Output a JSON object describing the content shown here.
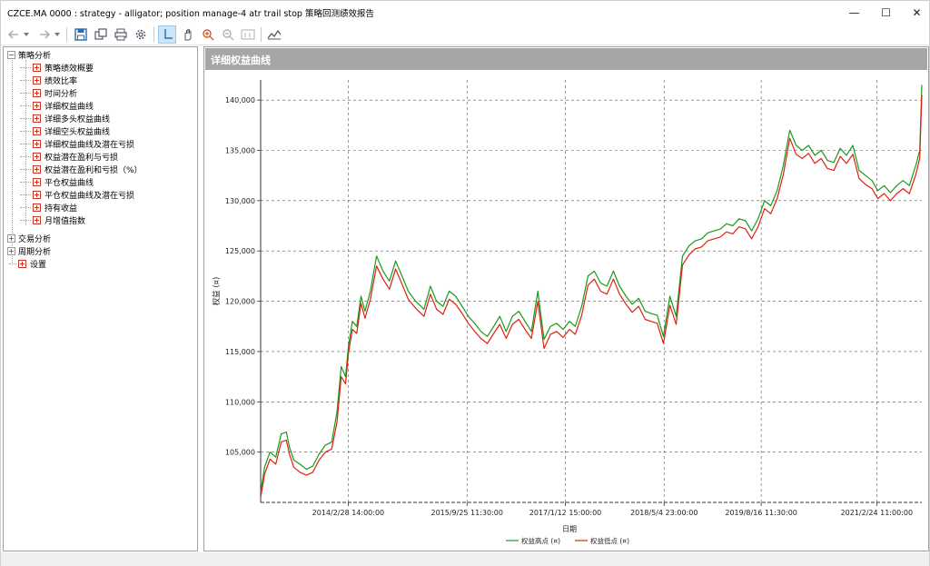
{
  "window": {
    "title": "CZCE.MA 0000 : strategy - alligator; position manage-4 atr trail stop 策略回测绩效报告",
    "minimize": "—",
    "maximize": "☐",
    "close": "✕"
  },
  "toolbar": {
    "buttons": [
      "back-icon",
      "dropdown-arrow-icon",
      "forward-icon",
      "dropdown-arrow-icon",
      "save-icon",
      "copy-icon",
      "print-icon",
      "settings-icon",
      "crosshair-icon",
      "hand-pan-icon",
      "zoom-in-icon",
      "zoom-out-icon",
      "zoom-actual-icon",
      "chart-type-icon"
    ]
  },
  "tree": {
    "root_strategy": "策略分析",
    "items": [
      "策略绩效概要",
      "绩效比率",
      "时间分析",
      "详细权益曲线",
      "详细多头权益曲线",
      "详细空头权益曲线",
      "详细权益曲线及潜在亏损",
      "权益潜在盈利与亏损",
      "权益潜在盈利和亏损（%）",
      "平仓权益曲线",
      "平仓权益曲线及潜在亏损",
      "持有收益",
      "月增值指数"
    ],
    "selected_index": 3,
    "root_trade": "交易分析",
    "root_period": "周期分析",
    "settings": "设置"
  },
  "chart_header": "详细权益曲线",
  "chart_data": {
    "type": "line",
    "title": "",
    "xlabel": "日期",
    "ylabel": "权益 (¤)",
    "ylim": [
      100000,
      142000
    ],
    "y_ticks": [
      "105,000",
      "110,000",
      "115,000",
      "120,000",
      "125,000",
      "130,000",
      "135,000",
      "140,000"
    ],
    "y_tick_values": [
      105000,
      110000,
      115000,
      120000,
      125000,
      130000,
      135000,
      140000
    ],
    "x_ticks": [
      "2014/2/28 14:00:00",
      "2015/9/25 11:30:00",
      "2017/1/12 15:00:00",
      "2018/5/4 23:00:00",
      "2019/8/16 11:30:00",
      "2021/2/24 11:00:00"
    ],
    "x_tick_dates": [
      "2014-02-28",
      "2015-09-25",
      "2017-01-12",
      "2018-05-04",
      "2019-08-16",
      "2021-02-24"
    ],
    "x_range": [
      "2013-01-01",
      "2021-09-30"
    ],
    "grid": true,
    "legend_position": "bottom",
    "series": [
      {
        "name": "权益高点 (¤)",
        "color": "#1a9a1a",
        "x": [
          "2013-01-01",
          "2013-01-20",
          "2013-02-15",
          "2013-03-15",
          "2013-04-10",
          "2013-05-05",
          "2013-05-20",
          "2013-06-10",
          "2013-07-10",
          "2013-08-10",
          "2013-09-10",
          "2013-10-10",
          "2013-11-10",
          "2013-12-10",
          "2014-01-05",
          "2014-01-25",
          "2014-02-15",
          "2014-03-01",
          "2014-03-20",
          "2014-04-10",
          "2014-05-01",
          "2014-05-20",
          "2014-06-15",
          "2014-07-15",
          "2014-08-15",
          "2014-09-15",
          "2014-10-15",
          "2014-11-15",
          "2014-12-15",
          "2015-01-20",
          "2015-03-01",
          "2015-04-01",
          "2015-05-01",
          "2015-06-01",
          "2015-07-01",
          "2015-08-01",
          "2015-09-01",
          "2015-10-01",
          "2015-11-01",
          "2015-12-01",
          "2016-01-01",
          "2016-02-01",
          "2016-03-01",
          "2016-04-01",
          "2016-05-01",
          "2016-06-01",
          "2016-07-01",
          "2016-08-01",
          "2016-09-01",
          "2016-10-01",
          "2016-11-01",
          "2016-12-01",
          "2017-01-01",
          "2017-02-01",
          "2017-03-01",
          "2017-04-01",
          "2017-05-01",
          "2017-06-01",
          "2017-07-01",
          "2017-08-01",
          "2017-09-01",
          "2017-10-01",
          "2017-11-01",
          "2017-12-01",
          "2018-01-01",
          "2018-02-01",
          "2018-03-01",
          "2018-04-01",
          "2018-05-01",
          "2018-06-01",
          "2018-07-01",
          "2018-08-01",
          "2018-09-01",
          "2018-10-01",
          "2018-11-01",
          "2018-12-01",
          "2019-01-01",
          "2019-02-01",
          "2019-03-01",
          "2019-04-01",
          "2019-05-01",
          "2019-06-01",
          "2019-07-01",
          "2019-08-01",
          "2019-09-01",
          "2019-10-01",
          "2019-11-01",
          "2019-12-01",
          "2020-01-01",
          "2020-02-01",
          "2020-03-01",
          "2020-04-01",
          "2020-05-01",
          "2020-06-01",
          "2020-07-01",
          "2020-08-01",
          "2020-09-01",
          "2020-10-01",
          "2020-11-01",
          "2020-12-01",
          "2021-01-01",
          "2021-02-01",
          "2021-03-01",
          "2021-04-01",
          "2021-05-01",
          "2021-06-01",
          "2021-07-01",
          "2021-08-01",
          "2021-09-01",
          "2021-09-20",
          "2021-09-30"
        ],
        "values": [
          101000,
          103500,
          105000,
          104500,
          106800,
          107000,
          105500,
          104200,
          103800,
          103300,
          103600,
          104800,
          105700,
          106000,
          109000,
          113500,
          112500,
          115500,
          118000,
          117500,
          120500,
          119000,
          121000,
          124500,
          123000,
          122000,
          124000,
          122500,
          121000,
          120000,
          119200,
          121500,
          120000,
          119500,
          121000,
          120500,
          119500,
          118500,
          117800,
          117000,
          116500,
          117500,
          118500,
          117000,
          118500,
          119000,
          118000,
          117000,
          121000,
          116200,
          117500,
          117800,
          117200,
          118000,
          117500,
          119500,
          122500,
          123000,
          121800,
          121500,
          123000,
          121500,
          120500,
          119700,
          120300,
          119000,
          118800,
          118600,
          116500,
          120500,
          118500,
          124500,
          125500,
          126000,
          126200,
          126800,
          127000,
          127200,
          127700,
          127500,
          128200,
          128000,
          127000,
          128200,
          130000,
          129500,
          131000,
          133500,
          137000,
          135500,
          135000,
          135500,
          134500,
          135000,
          134000,
          133800,
          135200,
          134500,
          135500,
          133000,
          132500,
          132000,
          131000,
          131500,
          130800,
          131500,
          132000,
          131500,
          133500,
          135000,
          141500
        ]
      },
      {
        "name": "权益低点 (¤)",
        "color": "#e02010",
        "x": [
          "2013-01-01",
          "2013-01-20",
          "2013-02-15",
          "2013-03-15",
          "2013-04-10",
          "2013-05-05",
          "2013-05-20",
          "2013-06-10",
          "2013-07-10",
          "2013-08-10",
          "2013-09-10",
          "2013-10-10",
          "2013-11-10",
          "2013-12-10",
          "2014-01-05",
          "2014-01-25",
          "2014-02-15",
          "2014-03-01",
          "2014-03-20",
          "2014-04-10",
          "2014-05-01",
          "2014-05-20",
          "2014-06-15",
          "2014-07-15",
          "2014-08-15",
          "2014-09-15",
          "2014-10-15",
          "2014-11-15",
          "2014-12-15",
          "2015-01-20",
          "2015-03-01",
          "2015-04-01",
          "2015-05-01",
          "2015-06-01",
          "2015-07-01",
          "2015-08-01",
          "2015-09-01",
          "2015-10-01",
          "2015-11-01",
          "2015-12-01",
          "2016-01-01",
          "2016-02-01",
          "2016-03-01",
          "2016-04-01",
          "2016-05-01",
          "2016-06-01",
          "2016-07-01",
          "2016-08-01",
          "2016-09-01",
          "2016-10-01",
          "2016-11-01",
          "2016-12-01",
          "2017-01-01",
          "2017-02-01",
          "2017-03-01",
          "2017-04-01",
          "2017-05-01",
          "2017-06-01",
          "2017-07-01",
          "2017-08-01",
          "2017-09-01",
          "2017-10-01",
          "2017-11-01",
          "2017-12-01",
          "2018-01-01",
          "2018-02-01",
          "2018-03-01",
          "2018-04-01",
          "2018-05-01",
          "2018-06-01",
          "2018-07-01",
          "2018-08-01",
          "2018-09-01",
          "2018-10-01",
          "2018-11-01",
          "2018-12-01",
          "2019-01-01",
          "2019-02-01",
          "2019-03-01",
          "2019-04-01",
          "2019-05-01",
          "2019-06-01",
          "2019-07-01",
          "2019-08-01",
          "2019-09-01",
          "2019-10-01",
          "2019-11-01",
          "2019-12-01",
          "2020-01-01",
          "2020-02-01",
          "2020-03-01",
          "2020-04-01",
          "2020-05-01",
          "2020-06-01",
          "2020-07-01",
          "2020-08-01",
          "2020-09-01",
          "2020-10-01",
          "2020-11-01",
          "2020-12-01",
          "2021-01-01",
          "2021-02-01",
          "2021-03-01",
          "2021-04-01",
          "2021-05-01",
          "2021-06-01",
          "2021-07-01",
          "2021-08-01",
          "2021-09-01",
          "2021-09-20",
          "2021-09-30"
        ],
        "values": [
          100500,
          102800,
          104300,
          103800,
          106000,
          106200,
          104800,
          103500,
          103000,
          102700,
          103000,
          104200,
          105000,
          105300,
          108000,
          112500,
          111800,
          114800,
          117200,
          116800,
          119800,
          118300,
          120200,
          123500,
          122200,
          121200,
          123200,
          121700,
          120200,
          119300,
          118500,
          120700,
          119200,
          118700,
          120200,
          119700,
          118800,
          117800,
          117000,
          116300,
          115800,
          116800,
          117700,
          116300,
          117700,
          118200,
          117200,
          116300,
          120000,
          115300,
          116700,
          117000,
          116400,
          117200,
          116700,
          118600,
          121600,
          122200,
          121000,
          120700,
          122200,
          120700,
          119700,
          118900,
          119500,
          118200,
          118000,
          117800,
          115800,
          119600,
          117700,
          123600,
          124600,
          125200,
          125400,
          126000,
          126200,
          126400,
          126900,
          126700,
          127400,
          127200,
          126200,
          127400,
          129200,
          128700,
          130200,
          132600,
          136200,
          134600,
          134200,
          134700,
          133700,
          134200,
          133200,
          133000,
          134400,
          133700,
          134600,
          132200,
          131600,
          131200,
          130200,
          130700,
          130000,
          130700,
          131200,
          130700,
          132600,
          134200,
          140500
        ]
      }
    ]
  }
}
